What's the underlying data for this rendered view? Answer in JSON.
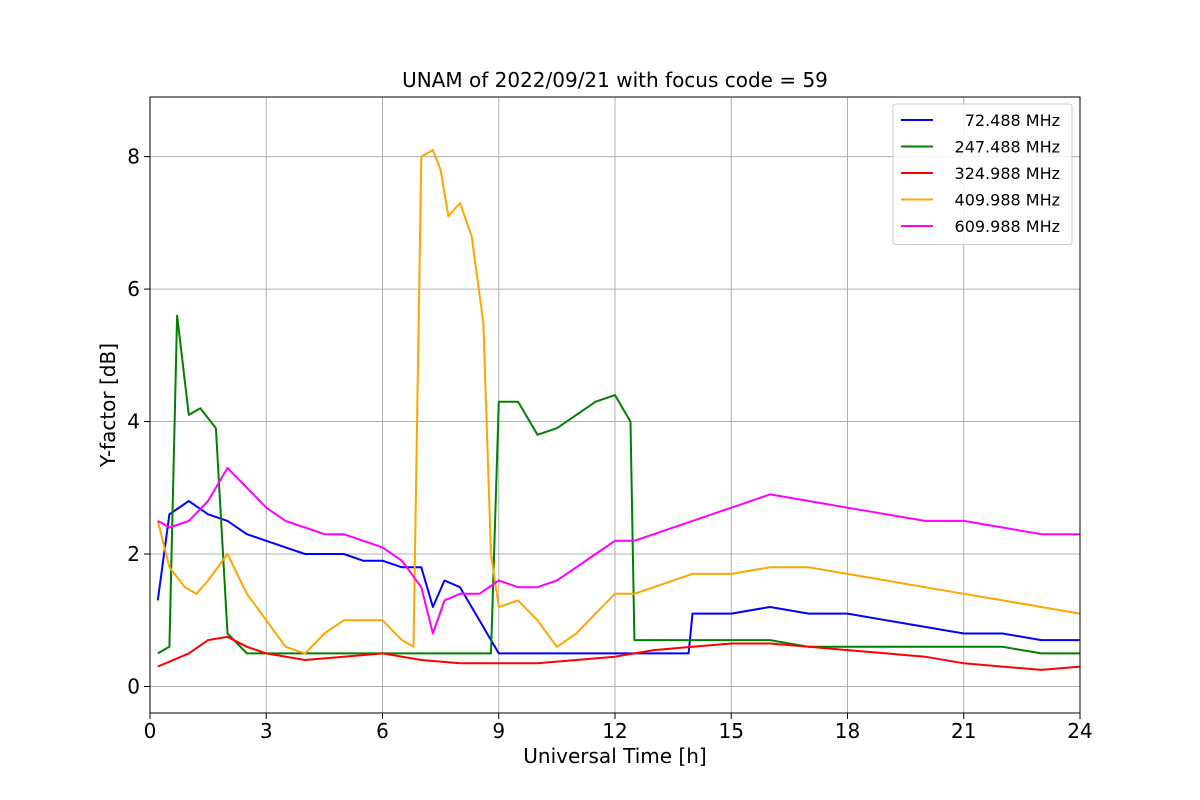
{
  "chart_data": {
    "type": "line",
    "title": "UNAM of 2022/09/21 with focus code = 59",
    "xlabel": "Universal Time [h]",
    "ylabel": "Y-factor [dB]",
    "xlim": [
      0,
      24
    ],
    "ylim": [
      -0.4,
      8.9
    ],
    "xticks": [
      "0",
      "3",
      "6",
      "9",
      "12",
      "15",
      "18",
      "21",
      "24"
    ],
    "yticks": [
      "0",
      "2",
      "4",
      "6",
      "8"
    ],
    "grid": true,
    "legend_position": "top-right",
    "series": [
      {
        "name": "72.488 MHz",
        "color": "#0000ff",
        "x": [
          0.2,
          0.5,
          1,
          1.5,
          2,
          2.5,
          3,
          3.5,
          4,
          4.5,
          5,
          5.5,
          6,
          6.5,
          7,
          7.3,
          7.6,
          8,
          8.5,
          9,
          10,
          11,
          12,
          13,
          13.9,
          14,
          15,
          16,
          17,
          18,
          19,
          20,
          21,
          22,
          23,
          24
        ],
        "y": [
          1.3,
          2.6,
          2.8,
          2.6,
          2.5,
          2.3,
          2.2,
          2.1,
          2.0,
          2.0,
          2.0,
          1.9,
          1.9,
          1.8,
          1.8,
          1.2,
          1.6,
          1.5,
          1.0,
          0.5,
          0.5,
          0.5,
          0.5,
          0.5,
          0.5,
          1.1,
          1.1,
          1.2,
          1.1,
          1.1,
          1.0,
          0.9,
          0.8,
          0.8,
          0.7,
          0.7
        ]
      },
      {
        "name": "247.488 MHz",
        "color": "#008000",
        "x": [
          0.2,
          0.5,
          0.7,
          1,
          1.3,
          1.7,
          2,
          2.5,
          3,
          4,
          5,
          6,
          7,
          8,
          8.8,
          9,
          9.5,
          10,
          10.5,
          11,
          11.5,
          12,
          12.4,
          12.5,
          13,
          14,
          15,
          16,
          17,
          18,
          19,
          20,
          21,
          22,
          23,
          24
        ],
        "y": [
          0.5,
          0.6,
          5.6,
          4.1,
          4.2,
          3.9,
          0.8,
          0.5,
          0.5,
          0.5,
          0.5,
          0.5,
          0.5,
          0.5,
          0.5,
          4.3,
          4.3,
          3.8,
          3.9,
          4.1,
          4.3,
          4.4,
          4.0,
          0.7,
          0.7,
          0.7,
          0.7,
          0.7,
          0.6,
          0.6,
          0.6,
          0.6,
          0.6,
          0.6,
          0.5,
          0.5
        ]
      },
      {
        "name": "324.988 MHz",
        "color": "#ff0000",
        "x": [
          0.2,
          1,
          1.5,
          2,
          2.5,
          3,
          4,
          5,
          6,
          7,
          8,
          9,
          10,
          11,
          12,
          13,
          14,
          15,
          16,
          17,
          18,
          19,
          20,
          21,
          22,
          23,
          24
        ],
        "y": [
          0.3,
          0.5,
          0.7,
          0.75,
          0.6,
          0.5,
          0.4,
          0.45,
          0.5,
          0.4,
          0.35,
          0.35,
          0.35,
          0.4,
          0.45,
          0.55,
          0.6,
          0.65,
          0.65,
          0.6,
          0.55,
          0.5,
          0.45,
          0.35,
          0.3,
          0.25,
          0.3
        ]
      },
      {
        "name": "409.988 MHz",
        "color": "#ffa500",
        "x": [
          0.2,
          0.5,
          0.9,
          1.2,
          1.5,
          2,
          2.5,
          3,
          3.5,
          4,
          4.5,
          5,
          5.5,
          6,
          6.5,
          6.8,
          7,
          7.3,
          7.5,
          7.7,
          8,
          8.3,
          8.6,
          8.8,
          9,
          9.5,
          10,
          10.5,
          11,
          11.5,
          12,
          12.5,
          13,
          14,
          15,
          16,
          17,
          18,
          19,
          20,
          21,
          22,
          23,
          24
        ],
        "y": [
          2.5,
          1.8,
          1.5,
          1.4,
          1.6,
          2.0,
          1.4,
          1.0,
          0.6,
          0.5,
          0.8,
          1.0,
          1.0,
          1.0,
          0.7,
          0.6,
          8.0,
          8.1,
          7.8,
          7.1,
          7.3,
          6.8,
          5.5,
          2.0,
          1.2,
          1.3,
          1.0,
          0.6,
          0.8,
          1.1,
          1.4,
          1.4,
          1.5,
          1.7,
          1.7,
          1.8,
          1.8,
          1.7,
          1.6,
          1.5,
          1.4,
          1.3,
          1.2,
          1.1
        ]
      },
      {
        "name": "609.988 MHz",
        "color": "#ff00ff",
        "x": [
          0.2,
          0.5,
          1,
          1.5,
          2,
          2.5,
          3,
          3.5,
          4,
          4.5,
          5,
          5.5,
          6,
          6.5,
          7,
          7.3,
          7.6,
          8,
          8.5,
          9,
          9.5,
          10,
          10.5,
          11,
          11.5,
          12,
          12.5,
          13,
          14,
          15,
          16,
          17,
          18,
          19,
          20,
          21,
          22,
          23,
          24
        ],
        "y": [
          2.5,
          2.4,
          2.5,
          2.8,
          3.3,
          3.0,
          2.7,
          2.5,
          2.4,
          2.3,
          2.3,
          2.2,
          2.1,
          1.9,
          1.5,
          0.8,
          1.3,
          1.4,
          1.4,
          1.6,
          1.5,
          1.5,
          1.6,
          1.8,
          2.0,
          2.2,
          2.2,
          2.3,
          2.5,
          2.7,
          2.9,
          2.8,
          2.7,
          2.6,
          2.5,
          2.5,
          2.4,
          2.3,
          2.3
        ]
      }
    ]
  }
}
